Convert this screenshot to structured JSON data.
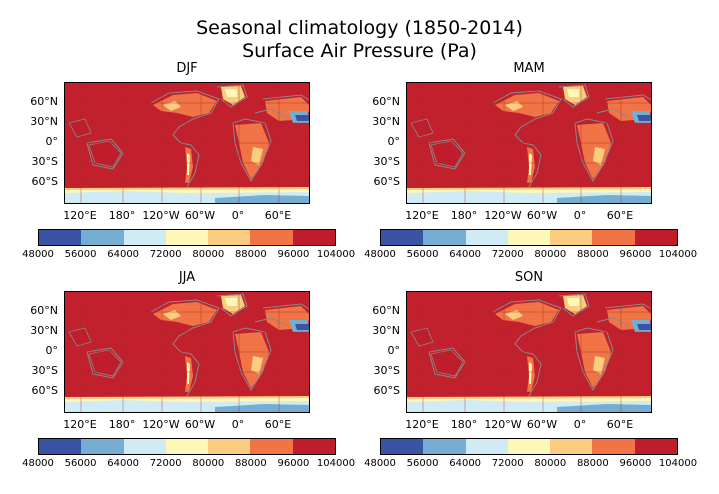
{
  "chart_data": {
    "type": "heatmap",
    "title": "Seasonal climatology  (1850-2014)",
    "subtitle": "Surface Air Pressure (Pa)",
    "variable": "Surface Air Pressure",
    "units": "Pa",
    "colorbar": {
      "levels": [
        48000,
        56000,
        64000,
        72000,
        80000,
        88000,
        96000,
        104000
      ],
      "level_labels": [
        "48000",
        "56000",
        "64000",
        "72000",
        "80000",
        "88000",
        "96000",
        "104000"
      ],
      "colors": [
        "#3a54a3",
        "#76aed3",
        "#d0ebf4",
        "#fef8b8",
        "#fbcd7e",
        "#f07445",
        "#bf1d2b"
      ]
    },
    "lat_ticks": [
      "60°N",
      "30°N",
      "0°",
      "30°S",
      "60°S"
    ],
    "lon_ticks": [
      "120°E",
      "180°",
      "120°W",
      "60°W",
      "0°",
      "60°E"
    ],
    "panels": [
      {
        "label": "DJF"
      },
      {
        "label": "MAM"
      },
      {
        "label": "JJA"
      },
      {
        "label": "SON"
      }
    ]
  }
}
